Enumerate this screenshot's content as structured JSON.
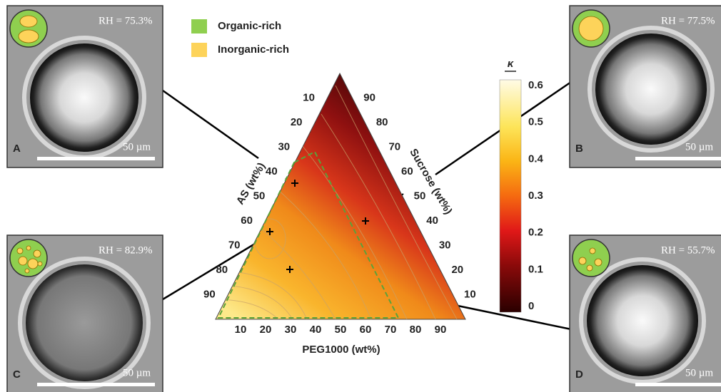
{
  "legend": [
    {
      "label": "Organic-rich"
    },
    {
      "label": "Inorganic-rich"
    }
  ],
  "panels": [
    {
      "letter": "A",
      "rh": "RH = 75.3%",
      "scale": "50 µm"
    },
    {
      "letter": "B",
      "rh": "RH = 77.5%",
      "scale": "50 µm"
    },
    {
      "letter": "C",
      "rh": "RH = 82.9%",
      "scale": "50 µm"
    },
    {
      "letter": "D",
      "rh": "RH = 55.7%",
      "scale": "50 µm"
    }
  ],
  "ternary": {
    "left_axis": {
      "title": "AS (wt%)",
      "ticks": [
        "10",
        "20",
        "30",
        "40",
        "50",
        "60",
        "70",
        "80",
        "90"
      ]
    },
    "right_axis": {
      "title": "Sucrose (wt%)",
      "ticks": [
        "90",
        "80",
        "70",
        "60",
        "50",
        "40",
        "30",
        "20",
        "10"
      ]
    },
    "bottom_axis": {
      "title": "PEG1000 (wt%)",
      "ticks": [
        "10",
        "20",
        "30",
        "40",
        "50",
        "60",
        "70",
        "80",
        "90"
      ]
    }
  },
  "colorbar": {
    "title": "κ",
    "ticks": [
      "0.6",
      "0.5",
      "0.4",
      "0.3",
      "0.2",
      "0.1",
      "0"
    ]
  }
}
